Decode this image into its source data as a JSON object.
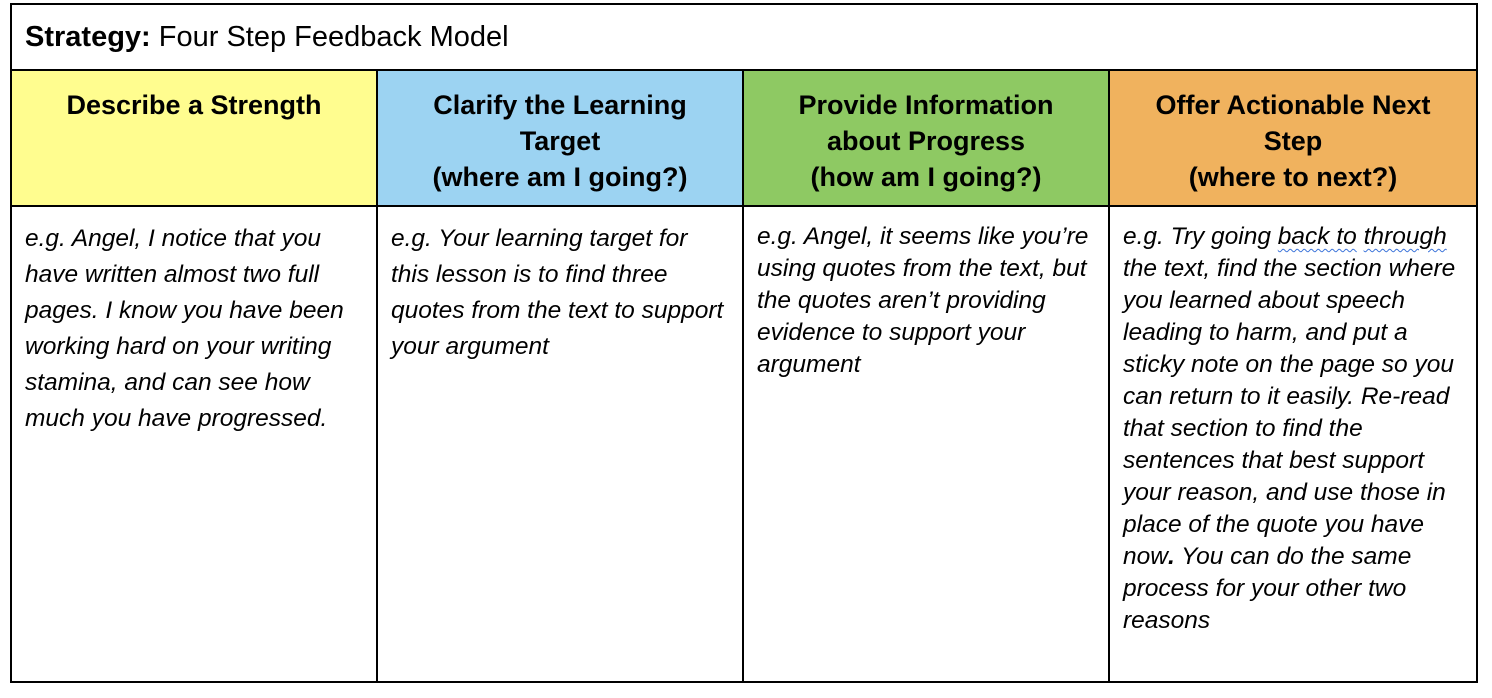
{
  "strategy": {
    "label": "Strategy:",
    "name": "Four Step Feedback Model"
  },
  "colors": {
    "describe": "#fffd8f",
    "clarify": "#9cd3f2",
    "provide": "#8ec963",
    "offer": "#f0b25e"
  },
  "columns": [
    {
      "heading_lines": [
        "Describe a Strength"
      ],
      "example": "e.g. Angel, I notice that you have written almost two full pages. I know you have been working hard on your writing stamina, and can see how much you have progressed."
    },
    {
      "heading_lines": [
        "Clarify the Learning",
        "Target",
        "(where am I going?)"
      ],
      "example": "e.g. Your learning target for this lesson is to find three quotes from the text to support your argument"
    },
    {
      "heading_lines": [
        "Provide Information",
        "about Progress",
        "(how am I going?)"
      ],
      "example": "e.g. Angel, it seems like you’re using quotes from the text, but the quotes aren’t providing evidence to support your argument"
    },
    {
      "heading_lines": [
        "Offer Actionable Next",
        "Step",
        "(where to next?)"
      ],
      "example_parts": {
        "lead": "e.g. Try going ",
        "flag_1": "back to",
        "gap": " ",
        "flag_2": "through",
        "rest": " the text, find the section where you learned about speech leading to harm, and put a sticky note on the page so you can return to it easily. Re-read that section to find the sentences that best support your reason, and use those in place of the quote you have now",
        "period": ".",
        "tail": " You can do the same process for your other two reasons"
      }
    }
  ]
}
